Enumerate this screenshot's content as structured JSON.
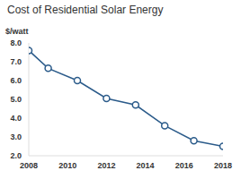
{
  "chart_data": {
    "type": "line",
    "title": "Cost of Residential Solar Energy",
    "y_label": "$/watt",
    "x": [
      2008,
      2009,
      2010.5,
      2012,
      2013.5,
      2015,
      2016.5,
      2018
    ],
    "values": [
      7.6,
      6.65,
      6.0,
      5.05,
      4.7,
      3.6,
      2.8,
      2.5
    ],
    "color": "#2b5b8a",
    "marker": "circle",
    "line_style": "solid",
    "xlim": [
      2008,
      2018
    ],
    "xticks": [
      2008,
      2010,
      2012,
      2014,
      2016,
      2018
    ],
    "ylim": [
      2,
      8
    ],
    "yticks": [
      {
        "value": 2,
        "label": "2.0"
      },
      {
        "value": 3,
        "label": "3.0"
      },
      {
        "value": 4,
        "label": "4.0"
      },
      {
        "value": 5,
        "label": "5.0"
      },
      {
        "value": 6,
        "label": "6.0"
      },
      {
        "value": 7,
        "label": "7.0"
      },
      {
        "value": 8,
        "label": "8.0"
      }
    ],
    "grid": false
  }
}
